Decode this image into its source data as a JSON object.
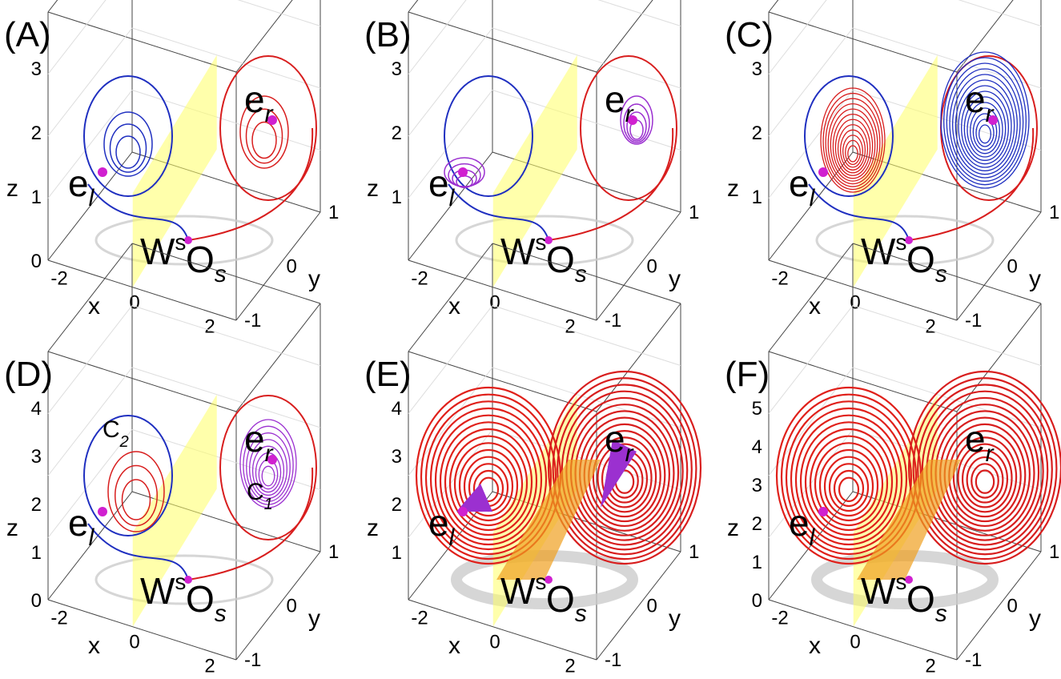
{
  "panels": [
    {
      "label": "(A)",
      "axes": {
        "x": "x",
        "y": "y",
        "z": "z"
      },
      "zticks": [
        0,
        1,
        2,
        3
      ],
      "xticks": [
        -2,
        0,
        2
      ],
      "yticks": [
        -1,
        0,
        1
      ],
      "annotations": [
        {
          "text": "e",
          "sub": "l"
        },
        {
          "text": "e",
          "sub": "r"
        },
        {
          "text": "W",
          "sup": "s"
        },
        {
          "text": "O",
          "sub": "s"
        }
      ]
    },
    {
      "label": "(B)",
      "axes": {
        "x": "x",
        "y": "y",
        "z": "z"
      },
      "zticks": [
        1,
        2,
        3
      ],
      "xticks": [
        -2,
        0,
        2
      ],
      "yticks": [
        -1,
        0,
        1
      ],
      "annotations": [
        {
          "text": "e",
          "sub": "l"
        },
        {
          "text": "e",
          "sub": "r"
        },
        {
          "text": "W",
          "sup": "s"
        },
        {
          "text": "O",
          "sub": "s"
        }
      ]
    },
    {
      "label": "(C)",
      "axes": {
        "x": "x",
        "y": "y",
        "z": "z"
      },
      "zticks": [
        1,
        2,
        3
      ],
      "xticks": [
        -2,
        0,
        2
      ],
      "yticks": [
        -1,
        0,
        1
      ],
      "annotations": [
        {
          "text": "e",
          "sub": "l"
        },
        {
          "text": "e",
          "sub": "r"
        },
        {
          "text": "W",
          "sup": "s"
        },
        {
          "text": "O",
          "sub": "s"
        }
      ]
    },
    {
      "label": "(D)",
      "axes": {
        "x": "x",
        "y": "y",
        "z": "z"
      },
      "zticks": [
        0,
        1,
        2,
        3,
        4
      ],
      "xticks": [
        -2,
        0,
        2
      ],
      "yticks": [
        -1,
        0,
        1
      ],
      "annotations": [
        {
          "text": "e",
          "sub": "l"
        },
        {
          "text": "e",
          "sub": "r"
        },
        {
          "text": "W",
          "sup": "s"
        },
        {
          "text": "O",
          "sub": "s"
        },
        {
          "text": "C",
          "sub": "2"
        },
        {
          "text": "C",
          "sub": "1"
        }
      ]
    },
    {
      "label": "(E)",
      "axes": {
        "x": "x",
        "y": "y",
        "z": "z"
      },
      "zticks": [
        1,
        2,
        3,
        4
      ],
      "xticks": [
        -2,
        0,
        2
      ],
      "yticks": [
        -1,
        0,
        1
      ],
      "annotations": [
        {
          "text": "e",
          "sub": "l"
        },
        {
          "text": "e",
          "sub": "r"
        },
        {
          "text": "W",
          "sup": "s"
        },
        {
          "text": "O",
          "sub": "s"
        }
      ]
    },
    {
      "label": "(F)",
      "axes": {
        "x": "x",
        "y": "y",
        "z": "z"
      },
      "zticks": [
        0,
        1,
        2,
        3,
        4,
        5
      ],
      "xticks": [
        -2,
        0,
        2
      ],
      "yticks": [
        -1,
        0,
        1
      ],
      "annotations": [
        {
          "text": "e",
          "sub": "l"
        },
        {
          "text": "e",
          "sub": "r"
        },
        {
          "text": "W",
          "sup": "s"
        },
        {
          "text": "O",
          "sub": "s"
        }
      ]
    }
  ]
}
